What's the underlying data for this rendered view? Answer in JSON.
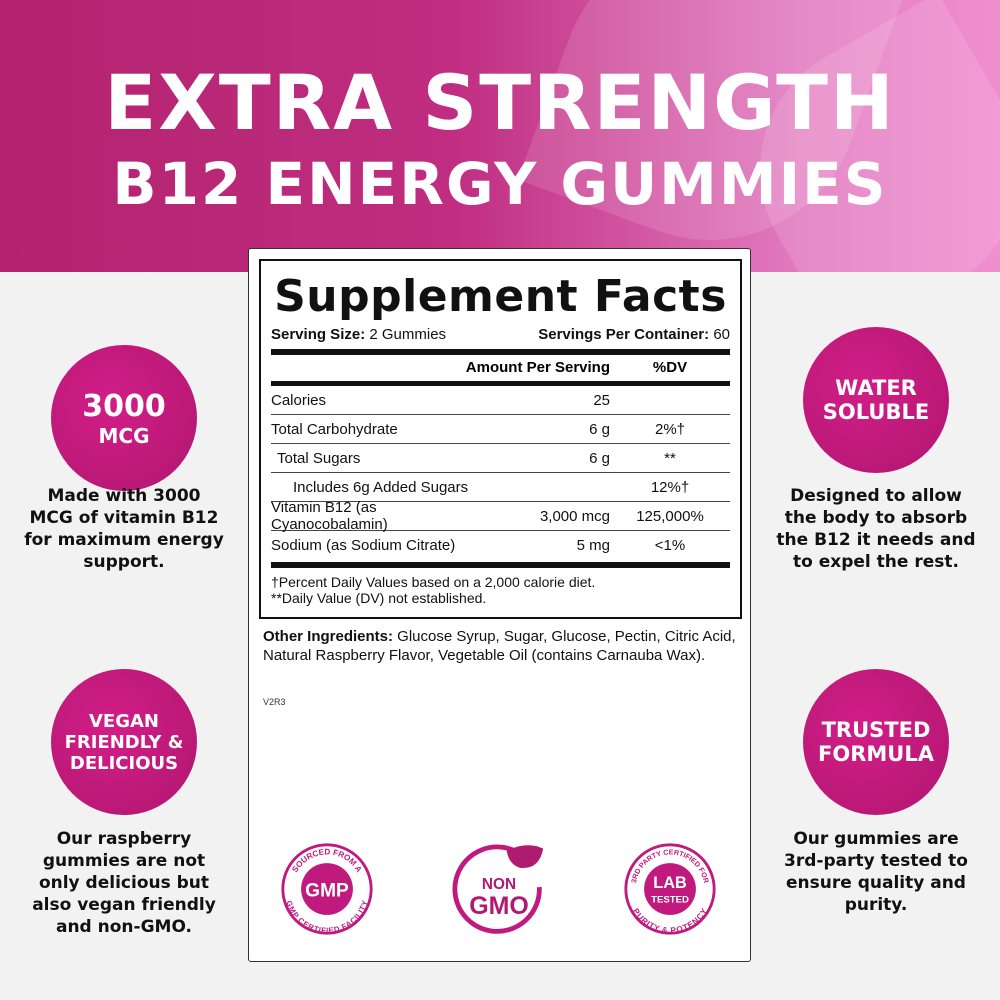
{
  "header": {
    "line1": "EXTRA STRENGTH",
    "line2": "B12 ENERGY GUMMIES"
  },
  "facts": {
    "title": "Supplement Facts",
    "serving_size_label": "Serving Size:",
    "serving_size": "2 Gummies",
    "servings_label": "Servings Per Container:",
    "servings": "60",
    "col_amount": "Amount Per Serving",
    "col_dv": "%DV",
    "rows": [
      {
        "name": "Calories",
        "amount": "25",
        "dv": ""
      },
      {
        "name": "Total Carbohydrate",
        "amount": "6 g",
        "dv": "2%†"
      },
      {
        "name": "Total Sugars",
        "amount": "6 g",
        "dv": "**"
      },
      {
        "name": "Includes 6g Added Sugars",
        "amount": "",
        "dv": "12%†"
      },
      {
        "name": "Vitamin B12 (as Cyanocobalamin)",
        "amount": "3,000 mcg",
        "dv": "125,000%"
      },
      {
        "name": "Sodium (as Sodium Citrate)",
        "amount": "5 mg",
        "dv": "<1%"
      }
    ],
    "footnote1": "†Percent Daily Values based on a 2,000 calorie diet.",
    "footnote2": "**Daily Value (DV) not established."
  },
  "ingredients": {
    "label": "Other Ingredients:",
    "text": " Glucose Syrup, Sugar, Glucose, Pectin, Citric Acid, Natural Raspberry Flavor, Vegetable Oil (contains Carnauba Wax)."
  },
  "version": "V2R3",
  "badges": {
    "gmp": {
      "top": "SOURCED FROM A",
      "center": "GMP",
      "bottom": "GMP CERTIFIED FACILITY"
    },
    "nongmo": {
      "line1": "NON",
      "line2": "GMO"
    },
    "lab": {
      "top": "3RD PARTY CERTIFIED FOR",
      "line1": "LAB",
      "line2": "TESTED",
      "bottom": "PURITY & POTENCY"
    }
  },
  "features": [
    {
      "l1": "3000",
      "l2": "MCG",
      "desc": "Made with 3000 MCG of vitamin B12 for maximum energy support."
    },
    {
      "l1": "WATER",
      "l2": "SOLUBLE",
      "desc": "Designed to allow the body to absorb the B12 it needs and to expel the rest."
    },
    {
      "l1": "VEGAN",
      "l2": "FRIENDLY &",
      "l3": "DELICIOUS",
      "desc": "Our raspberry gummies are not only delicious but also vegan friendly and non-GMO."
    },
    {
      "l1": "TRUSTED",
      "l2": "FORMULA",
      "desc": "Our gummies are 3rd-party tested to ensure quality and purity."
    }
  ],
  "colors": {
    "brand": "#c01a7e",
    "hero_left": "#b3236f",
    "hero_right": "#f08fd0"
  }
}
